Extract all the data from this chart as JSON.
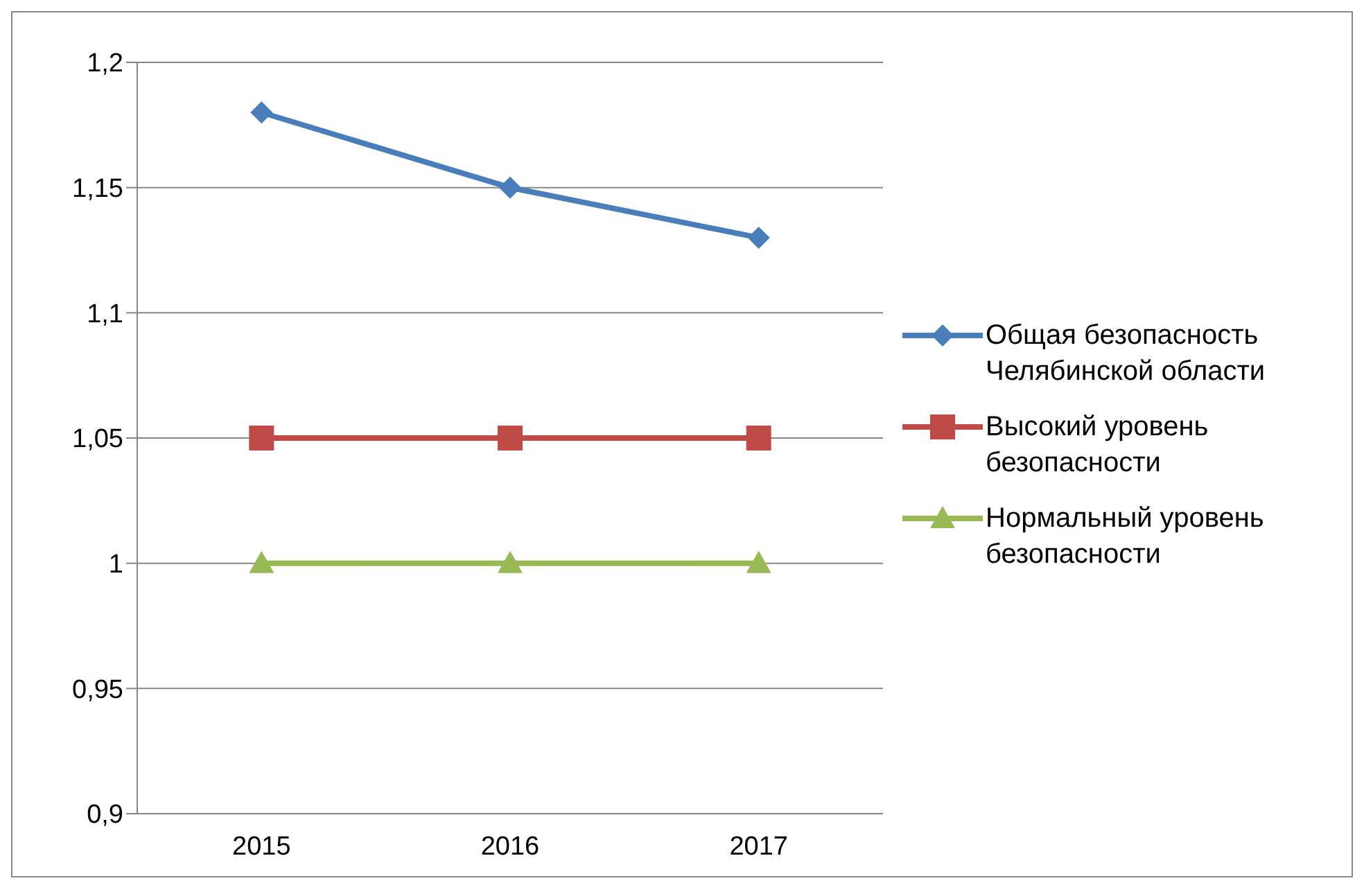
{
  "chart_data": {
    "type": "line",
    "categories": [
      "2015",
      "2016",
      "2017"
    ],
    "series": [
      {
        "name": "Общая безопасность Челябинской области",
        "color": "#4a7ebb",
        "marker": "diamond",
        "values": [
          1.18,
          1.15,
          1.13
        ]
      },
      {
        "name": "Высокий уровень безопасности",
        "color": "#be4b48",
        "marker": "square",
        "values": [
          1.05,
          1.05,
          1.05
        ]
      },
      {
        "name": "Нормальный уровень безопасности",
        "color": "#98b954",
        "marker": "triangle",
        "values": [
          1,
          1,
          1
        ]
      }
    ],
    "ylim": [
      0.9,
      1.2
    ],
    "yticks": [
      {
        "value": 0.9,
        "label": "0,9"
      },
      {
        "value": 0.95,
        "label": "0,95"
      },
      {
        "value": 1,
        "label": "1"
      },
      {
        "value": 1.05,
        "label": "1,05"
      },
      {
        "value": 1.1,
        "label": "1,1"
      },
      {
        "value": 1.15,
        "label": "1,15"
      },
      {
        "value": 1.2,
        "label": "1,2"
      }
    ],
    "grid": "y",
    "legend": "right",
    "line_style": "solid"
  }
}
